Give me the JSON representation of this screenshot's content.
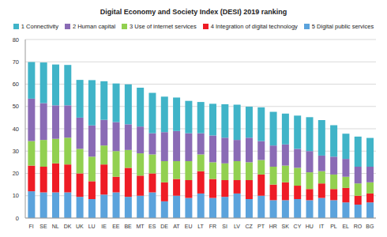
{
  "chart_data": {
    "type": "bar",
    "title": "Digital Economy and Society Index (DESI) 2019 ranking",
    "stacked": true,
    "grid": true,
    "legend": "top",
    "categories": [
      "FI",
      "SE",
      "NL",
      "DK",
      "UK",
      "LU",
      "IE",
      "EE",
      "BE",
      "MT",
      "ES",
      "DE",
      "AT",
      "EU",
      "LT",
      "FR",
      "SI",
      "LV",
      "CZ",
      "PT",
      "HR",
      "SK",
      "CY",
      "HU",
      "IT",
      "PL",
      "EL",
      "RO",
      "BG"
    ],
    "ylim": [
      0,
      80
    ],
    "yticks": [
      0,
      10,
      20,
      30,
      40,
      50,
      60,
      70,
      80
    ],
    "series": [
      {
        "name": "1 Connectivity",
        "color": "#40b4c8",
        "values": [
          16.4,
          18.2,
          18.3,
          18.1,
          16.9,
          20.3,
          17.3,
          17.3,
          17.9,
          17.4,
          18.1,
          15.9,
          15,
          14.5,
          14,
          14.2,
          15,
          15.8,
          13.9,
          15.1,
          15.1,
          13.8,
          14.9,
          15.2,
          15.9,
          14.1,
          11.3,
          13.5,
          12.9
        ]
      },
      {
        "name": "2 Human capital",
        "color": "#8a6bb5",
        "values": [
          19,
          16.5,
          15,
          14.5,
          14,
          14,
          11.5,
          13,
          11.5,
          12,
          9.5,
          13,
          13.5,
          12.5,
          9.5,
          12,
          11.5,
          9.5,
          11,
          8.5,
          9.5,
          9.5,
          8.5,
          9.5,
          7,
          8,
          8,
          7.5,
          7
        ]
      },
      {
        "name": "3 Use of internet services",
        "color": "#92d050",
        "values": [
          11,
          12,
          11,
          12,
          11,
          11,
          8.5,
          11.5,
          8,
          10,
          8.5,
          9.5,
          8,
          8.5,
          7.5,
          7.5,
          7.5,
          8.5,
          8,
          6.5,
          8,
          7.5,
          8,
          7.5,
          5.5,
          6.5,
          5,
          5.5,
          5
        ]
      },
      {
        "name": "4 Integration of digital technology",
        "color": "#ee1c25",
        "values": [
          11.5,
          11.5,
          13,
          12.5,
          10.5,
          8,
          13.5,
          7,
          13,
          9,
          8.5,
          8.5,
          7.5,
          8,
          10,
          8.5,
          7.5,
          6,
          8.5,
          9.5,
          7,
          8,
          6,
          5,
          6.5,
          5,
          6.5,
          4,
          4
        ]
      },
      {
        "name": "5 Digital public services",
        "color": "#5ba3dc",
        "values": [
          12,
          11.5,
          11.5,
          11.5,
          9.5,
          8.5,
          10.5,
          11.5,
          9.5,
          10,
          11.5,
          7.5,
          10,
          9,
          11,
          9,
          9.5,
          11,
          8.5,
          10,
          8,
          8,
          8.5,
          8,
          9,
          8,
          7,
          6,
          7
        ]
      }
    ]
  }
}
